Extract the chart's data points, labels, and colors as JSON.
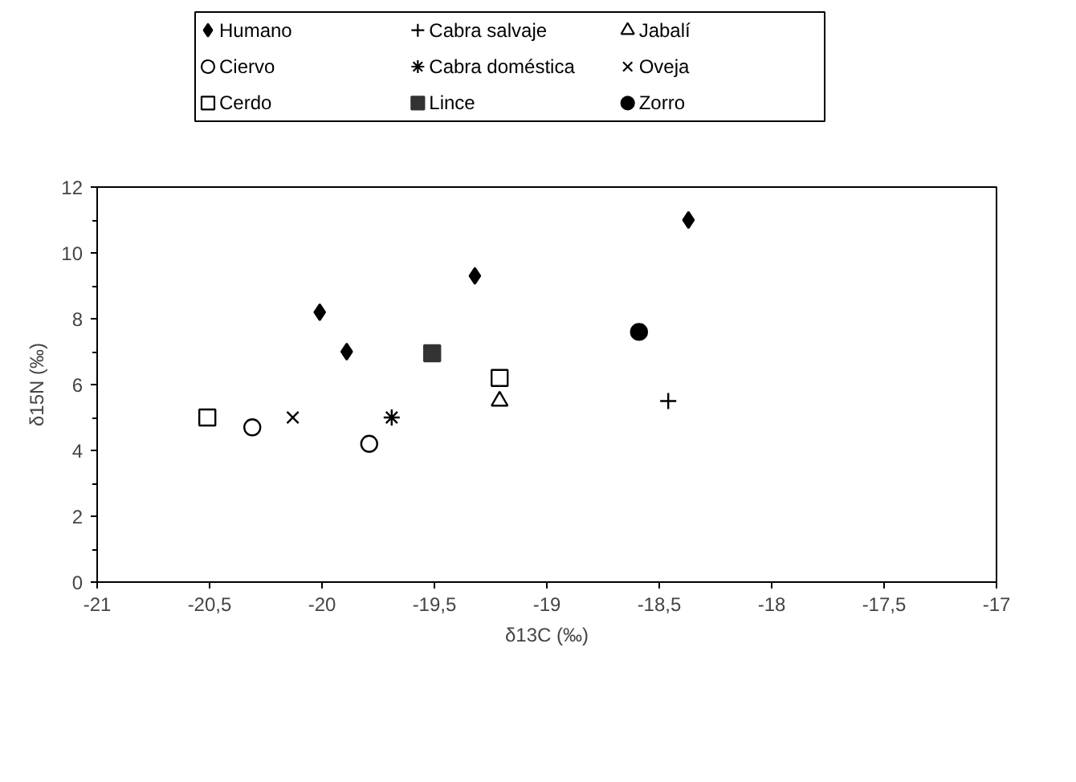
{
  "chart_data": {
    "type": "scatter",
    "xlabel": "δ13C (‰)",
    "ylabel": "δ15N (‰)",
    "xlim": [
      -21,
      -17
    ],
    "ylim": [
      0,
      12
    ],
    "xticks": [
      -21,
      {
        "value": -20.5,
        "label": "-20,5"
      },
      -20,
      {
        "value": -19.5,
        "label": "-19,5"
      },
      -19,
      {
        "value": -18.5,
        "label": "-18,5"
      },
      -18,
      {
        "value": -17.5,
        "label": "-17,5"
      },
      -17
    ],
    "yticks": [
      0,
      2,
      4,
      6,
      8,
      10,
      12
    ],
    "legend": "top",
    "series": [
      {
        "name": "Humano",
        "color": "#000000",
        "marker": "diamond",
        "x": [
          -20.01,
          -19.89,
          -19.32,
          -18.37
        ],
        "values": [
          8.2,
          7.0,
          9.3,
          11.0
        ]
      },
      {
        "name": "Cabra salvaje",
        "color": "#000000",
        "marker": "cross",
        "x": [
          -18.46
        ],
        "values": [
          5.5
        ]
      },
      {
        "name": "Jabalí",
        "color": "#000000",
        "marker": "triangle_open",
        "x": [
          -19.21
        ],
        "values": [
          5.5
        ]
      },
      {
        "name": "Ciervo",
        "color": "#000000",
        "marker": "circle_open",
        "x": [
          -20.31,
          -19.79
        ],
        "values": [
          4.7,
          4.2
        ]
      },
      {
        "name": "Cabra doméstica",
        "color": "#000000",
        "x": [
          -19.69
        ],
        "values": [
          5.0
        ]
      },
      {
        "name": "Oveja",
        "color": "#000000",
        "marker": "x",
        "x": [
          -20.13
        ],
        "values": [
          5.0
        ]
      },
      {
        "name": "Cerdo",
        "color": "#000000",
        "marker": "square_open",
        "x": [
          -20.51,
          -19.21
        ],
        "values": [
          5.0,
          6.2
        ]
      },
      {
        "name": "Lince",
        "color": "#333333",
        "marker": "square",
        "x": [
          -19.51
        ],
        "values": [
          6.95
        ]
      },
      {
        "name": "Zorro",
        "color": "#000000",
        "marker": "circle",
        "x": [
          -18.59
        ],
        "values": [
          7.6
        ]
      }
    ]
  }
}
